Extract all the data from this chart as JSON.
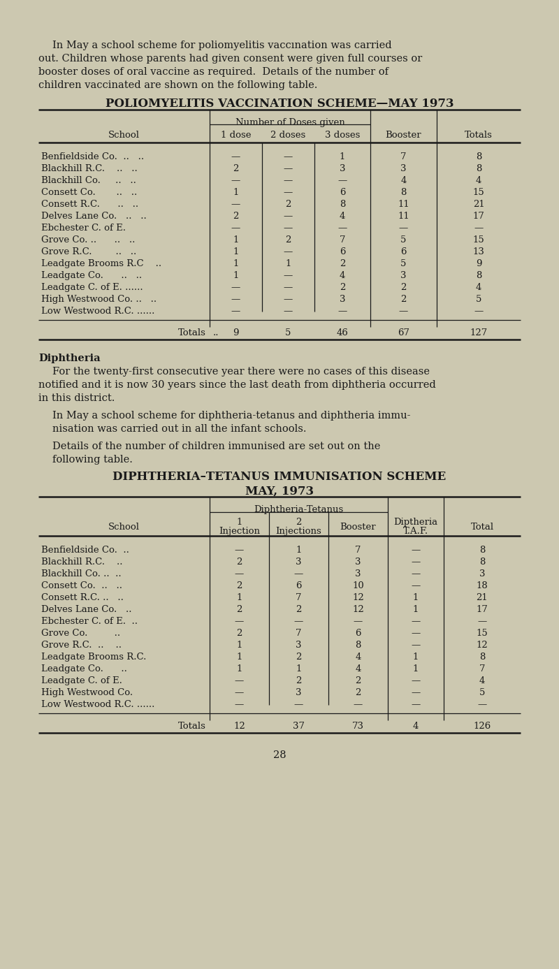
{
  "bg_color": "#ccc8b0",
  "text_color": "#1a1a1a",
  "page_number": "28",
  "table1_title": "POLIOMYELITIS VACCINATION SCHEME—MAY 1973",
  "table1_header_group": "Number of Doses given",
  "table1_schools": [
    "Benfieldside Co.  ..   ..",
    "Blackhill R.C.    ..   ..",
    "Blackhill Co.     ..   ..",
    "Consett Co.       ..   ..",
    "Consett R.C.      ..   ..",
    "Delves Lane Co.   ..   ..",
    "Ebchester C. of E.",
    "Grove Co. ..      ..   ..",
    "Grove R.C.        ..   ..",
    "Leadgate Brooms R.C    ..",
    "Leadgate Co.      ..   ..",
    "Leadgate C. of E. ......",
    "High Westwood Co. ..   ..",
    "Low Westwood R.C. ......"
  ],
  "table1_data": [
    [
      "—",
      "—",
      "1",
      "7",
      "8"
    ],
    [
      "2",
      "—",
      "3",
      "3",
      "8"
    ],
    [
      "—",
      "—",
      "—",
      "4",
      "4"
    ],
    [
      "1",
      "—",
      "6",
      "8",
      "15"
    ],
    [
      "—",
      "2",
      "8",
      "11",
      "21"
    ],
    [
      "2",
      "—",
      "4",
      "11",
      "17"
    ],
    [
      "—",
      "—",
      "—",
      "—",
      "—"
    ],
    [
      "1",
      "2",
      "7",
      "5",
      "15"
    ],
    [
      "1",
      "—",
      "6",
      "6",
      "13"
    ],
    [
      "1",
      "1",
      "2",
      "5",
      "9"
    ],
    [
      "1",
      "—",
      "4",
      "3",
      "8"
    ],
    [
      "—",
      "—",
      "2",
      "2",
      "4"
    ],
    [
      "—",
      "—",
      "3",
      "2",
      "5"
    ],
    [
      "—",
      "—",
      "—",
      "—",
      "—"
    ]
  ],
  "table1_totals": [
    "9",
    "5",
    "46",
    "67",
    "127"
  ],
  "table2_title_line1": "DIPHTHERIA–TETANUS IMMUNISATION SCHEME",
  "table2_title_line2": "MAY, 1973",
  "table2_header_group": "Diphtheria-Tetanus",
  "table2_schools": [
    "Benfieldside Co.  ..",
    "Blackhill R.C.    ..",
    "Blackhill Co. ..  ..",
    "Consett Co.  ..   ..",
    "Consett R.C. ..   ..",
    "Delves Lane Co.   ..",
    "Ebchester C. of E.  ..",
    "Grove Co.         ..",
    "Grove R.C.  ..    ..",
    "Leadgate Brooms R.C.",
    "Leadgate Co.      ..",
    "Leadgate C. of E.",
    "High Westwood Co.",
    "Low Westwood R.C. ......"
  ],
  "table2_data": [
    [
      "—",
      "1",
      "7",
      "—",
      "8"
    ],
    [
      "2",
      "3",
      "3",
      "—",
      "8"
    ],
    [
      "—",
      "—",
      "3",
      "—",
      "3"
    ],
    [
      "2",
      "6",
      "10",
      "—",
      "18"
    ],
    [
      "1",
      "7",
      "12",
      "1",
      "21"
    ],
    [
      "2",
      "2",
      "12",
      "1",
      "17"
    ],
    [
      "—",
      "—",
      "—",
      "—",
      "—"
    ],
    [
      "2",
      "7",
      "6",
      "—",
      "15"
    ],
    [
      "1",
      "3",
      "8",
      "—",
      "12"
    ],
    [
      "1",
      "2",
      "4",
      "1",
      "8"
    ],
    [
      "1",
      "1",
      "4",
      "1",
      "7"
    ],
    [
      "—",
      "2",
      "2",
      "—",
      "4"
    ],
    [
      "—",
      "3",
      "2",
      "—",
      "5"
    ],
    [
      "—",
      "—",
      "—",
      "—",
      "—"
    ]
  ],
  "table2_totals": [
    "12",
    "37",
    "73",
    "4",
    "126"
  ]
}
